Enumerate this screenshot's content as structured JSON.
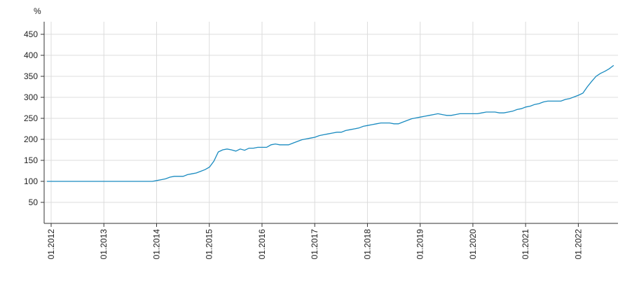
{
  "chart_data": {
    "type": "line",
    "y_label": "%",
    "categories": [
      "01.2012",
      null,
      null,
      null,
      null,
      null,
      null,
      null,
      null,
      null,
      null,
      null,
      "01.2013",
      null,
      null,
      null,
      null,
      null,
      null,
      null,
      null,
      null,
      null,
      null,
      "01.2014",
      null,
      null,
      null,
      null,
      null,
      null,
      null,
      null,
      null,
      null,
      null,
      "01.2015",
      null,
      null,
      null,
      null,
      null,
      null,
      null,
      null,
      null,
      null,
      null,
      "01.2016",
      null,
      null,
      null,
      null,
      null,
      null,
      null,
      null,
      null,
      null,
      null,
      "01.2017",
      null,
      null,
      null,
      null,
      null,
      null,
      null,
      null,
      null,
      null,
      null,
      "01.2018",
      null,
      null,
      null,
      null,
      null,
      null,
      null,
      null,
      null,
      null,
      null,
      "01.2019",
      null,
      null,
      null,
      null,
      null,
      null,
      null,
      null,
      null,
      null,
      null,
      "01.2020",
      null,
      null,
      null,
      null,
      null,
      null,
      null,
      null,
      null,
      null,
      null,
      "01.2021",
      null,
      null,
      null,
      null,
      null,
      null,
      null,
      null,
      null,
      null,
      null,
      "01.2022",
      null,
      null,
      null,
      null,
      null,
      null,
      null,
      null,
      null
    ],
    "values": [
      100,
      100,
      100,
      100,
      100,
      100,
      100,
      100,
      100,
      100,
      100,
      100,
      100,
      100,
      100,
      100,
      100,
      100,
      100,
      100,
      100,
      100,
      100,
      100,
      100,
      102,
      104,
      106,
      110,
      112,
      112,
      112,
      116,
      118,
      120,
      124,
      128,
      134,
      148,
      170,
      175,
      177,
      175,
      172,
      177,
      174,
      179,
      179,
      181,
      181,
      181,
      187,
      189,
      187,
      187,
      187,
      191,
      195,
      199,
      201,
      203,
      205,
      209,
      211,
      213,
      215,
      217,
      217,
      221,
      223,
      225,
      227,
      231,
      233,
      235,
      237,
      239,
      239,
      239,
      237,
      237,
      241,
      245,
      249,
      251,
      253,
      255,
      257,
      259,
      261,
      259,
      257,
      257,
      259,
      261,
      261,
      261,
      261,
      261,
      263,
      265,
      265,
      265,
      263,
      263,
      265,
      267,
      271,
      273,
      277,
      279,
      283,
      285,
      289,
      291,
      291,
      291,
      291,
      295,
      297,
      301,
      305,
      310,
      325,
      338,
      350,
      357,
      362,
      368,
      376
    ],
    "color": "#1a8bc0",
    "ylim": [
      0,
      480
    ],
    "yticks": [
      50,
      100,
      150,
      200,
      250,
      300,
      350,
      400,
      450
    ],
    "grid": true
  }
}
